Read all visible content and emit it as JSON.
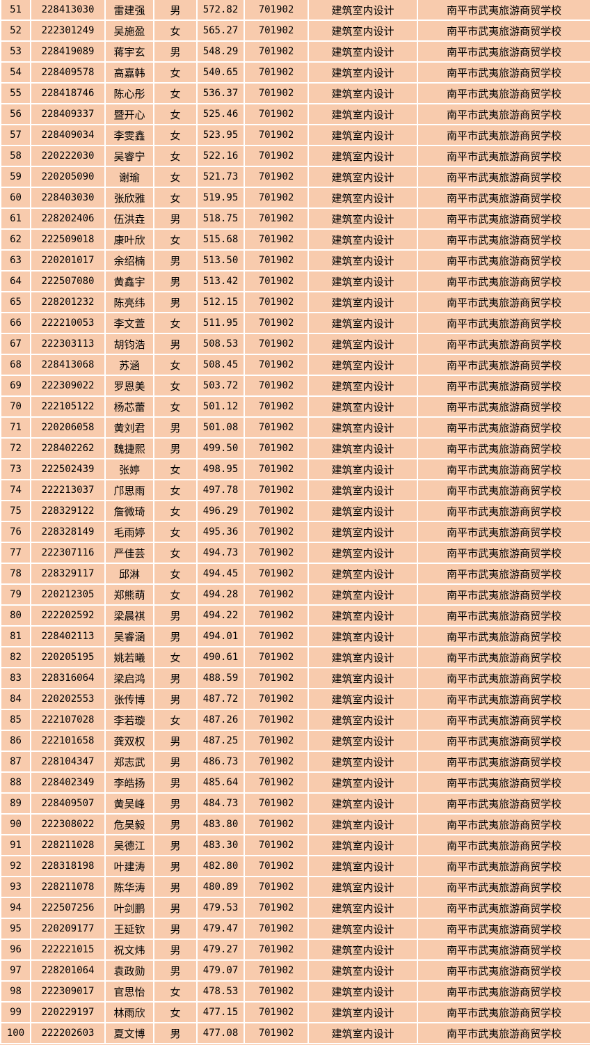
{
  "colors": {
    "cell_background": "#f8cbad",
    "grid_line": "#ffffff"
  },
  "shared": {
    "code": "701902",
    "major": "建筑室内设计",
    "school": "南平市武夷旅游商贸学校"
  },
  "rows": [
    [
      "51",
      "228413030",
      "雷建强",
      "男",
      "572.82"
    ],
    [
      "52",
      "222301249",
      "吴施盈",
      "女",
      "565.27"
    ],
    [
      "53",
      "228419089",
      "蒋宇玄",
      "男",
      "548.29"
    ],
    [
      "54",
      "228409578",
      "高嘉韩",
      "女",
      "540.65"
    ],
    [
      "55",
      "228418746",
      "陈心彤",
      "女",
      "536.37"
    ],
    [
      "56",
      "228409337",
      "暨开心",
      "女",
      "525.46"
    ],
    [
      "57",
      "228409034",
      "李雯鑫",
      "女",
      "523.95"
    ],
    [
      "58",
      "220222030",
      "吴睿宁",
      "女",
      "522.16"
    ],
    [
      "59",
      "220205090",
      "谢瑜",
      "女",
      "521.73"
    ],
    [
      "60",
      "228403030",
      "张欣雅",
      "女",
      "519.95"
    ],
    [
      "61",
      "228202406",
      "伍洪垚",
      "男",
      "518.75"
    ],
    [
      "62",
      "222509018",
      "康叶欣",
      "女",
      "515.68"
    ],
    [
      "63",
      "220201017",
      "余绍楠",
      "男",
      "513.50"
    ],
    [
      "64",
      "222507080",
      "黄鑫宇",
      "男",
      "513.42"
    ],
    [
      "65",
      "228201232",
      "陈亮纬",
      "男",
      "512.15"
    ],
    [
      "66",
      "222210053",
      "李文萱",
      "女",
      "511.95"
    ],
    [
      "67",
      "222303113",
      "胡钧浩",
      "男",
      "508.53"
    ],
    [
      "68",
      "228413068",
      "苏涵",
      "女",
      "508.45"
    ],
    [
      "69",
      "222309022",
      "罗恩美",
      "女",
      "503.72"
    ],
    [
      "70",
      "222105122",
      "杨芯蕾",
      "女",
      "501.12"
    ],
    [
      "71",
      "220206058",
      "黄刘君",
      "男",
      "501.08"
    ],
    [
      "72",
      "228402262",
      "魏捷熙",
      "男",
      "499.50"
    ],
    [
      "73",
      "222502439",
      "张婷",
      "女",
      "498.95"
    ],
    [
      "74",
      "222213037",
      "邝思雨",
      "女",
      "497.78"
    ],
    [
      "75",
      "228329122",
      "詹微琦",
      "女",
      "496.29"
    ],
    [
      "76",
      "228328149",
      "毛雨婷",
      "女",
      "495.36"
    ],
    [
      "77",
      "222307116",
      "严佳芸",
      "女",
      "494.73"
    ],
    [
      "78",
      "228329117",
      "邱淋",
      "女",
      "494.45"
    ],
    [
      "79",
      "220212305",
      "郑熊萌",
      "女",
      "494.28"
    ],
    [
      "80",
      "222202592",
      "梁晨祺",
      "男",
      "494.22"
    ],
    [
      "81",
      "228402113",
      "吴睿涵",
      "男",
      "494.01"
    ],
    [
      "82",
      "220205195",
      "姚若曦",
      "女",
      "490.61"
    ],
    [
      "83",
      "228316064",
      "梁启鸿",
      "男",
      "488.59"
    ],
    [
      "84",
      "220202553",
      "张传博",
      "男",
      "487.72"
    ],
    [
      "85",
      "222107028",
      "李若璇",
      "女",
      "487.26"
    ],
    [
      "86",
      "222101658",
      "龚双权",
      "男",
      "487.25"
    ],
    [
      "87",
      "228104347",
      "郑志武",
      "男",
      "486.73"
    ],
    [
      "88",
      "228402349",
      "李皓扬",
      "男",
      "485.64"
    ],
    [
      "89",
      "228409507",
      "黄吴峰",
      "男",
      "484.73"
    ],
    [
      "90",
      "222308022",
      "危昊毅",
      "男",
      "483.80"
    ],
    [
      "91",
      "228211028",
      "吴德江",
      "男",
      "483.30"
    ],
    [
      "92",
      "228318198",
      "叶建涛",
      "男",
      "482.80"
    ],
    [
      "93",
      "228211078",
      "陈华涛",
      "男",
      "480.89"
    ],
    [
      "94",
      "222507256",
      "叶剑鹏",
      "男",
      "479.53"
    ],
    [
      "95",
      "220209177",
      "王延钦",
      "男",
      "479.47"
    ],
    [
      "96",
      "222221015",
      "祝文炜",
      "男",
      "479.27"
    ],
    [
      "97",
      "228201064",
      "袁政勋",
      "男",
      "479.07"
    ],
    [
      "98",
      "222309017",
      "官思怡",
      "女",
      "478.53"
    ],
    [
      "99",
      "220229197",
      "林雨欣",
      "女",
      "477.15"
    ],
    [
      "100",
      "222202603",
      "夏文博",
      "男",
      "477.08"
    ]
  ]
}
